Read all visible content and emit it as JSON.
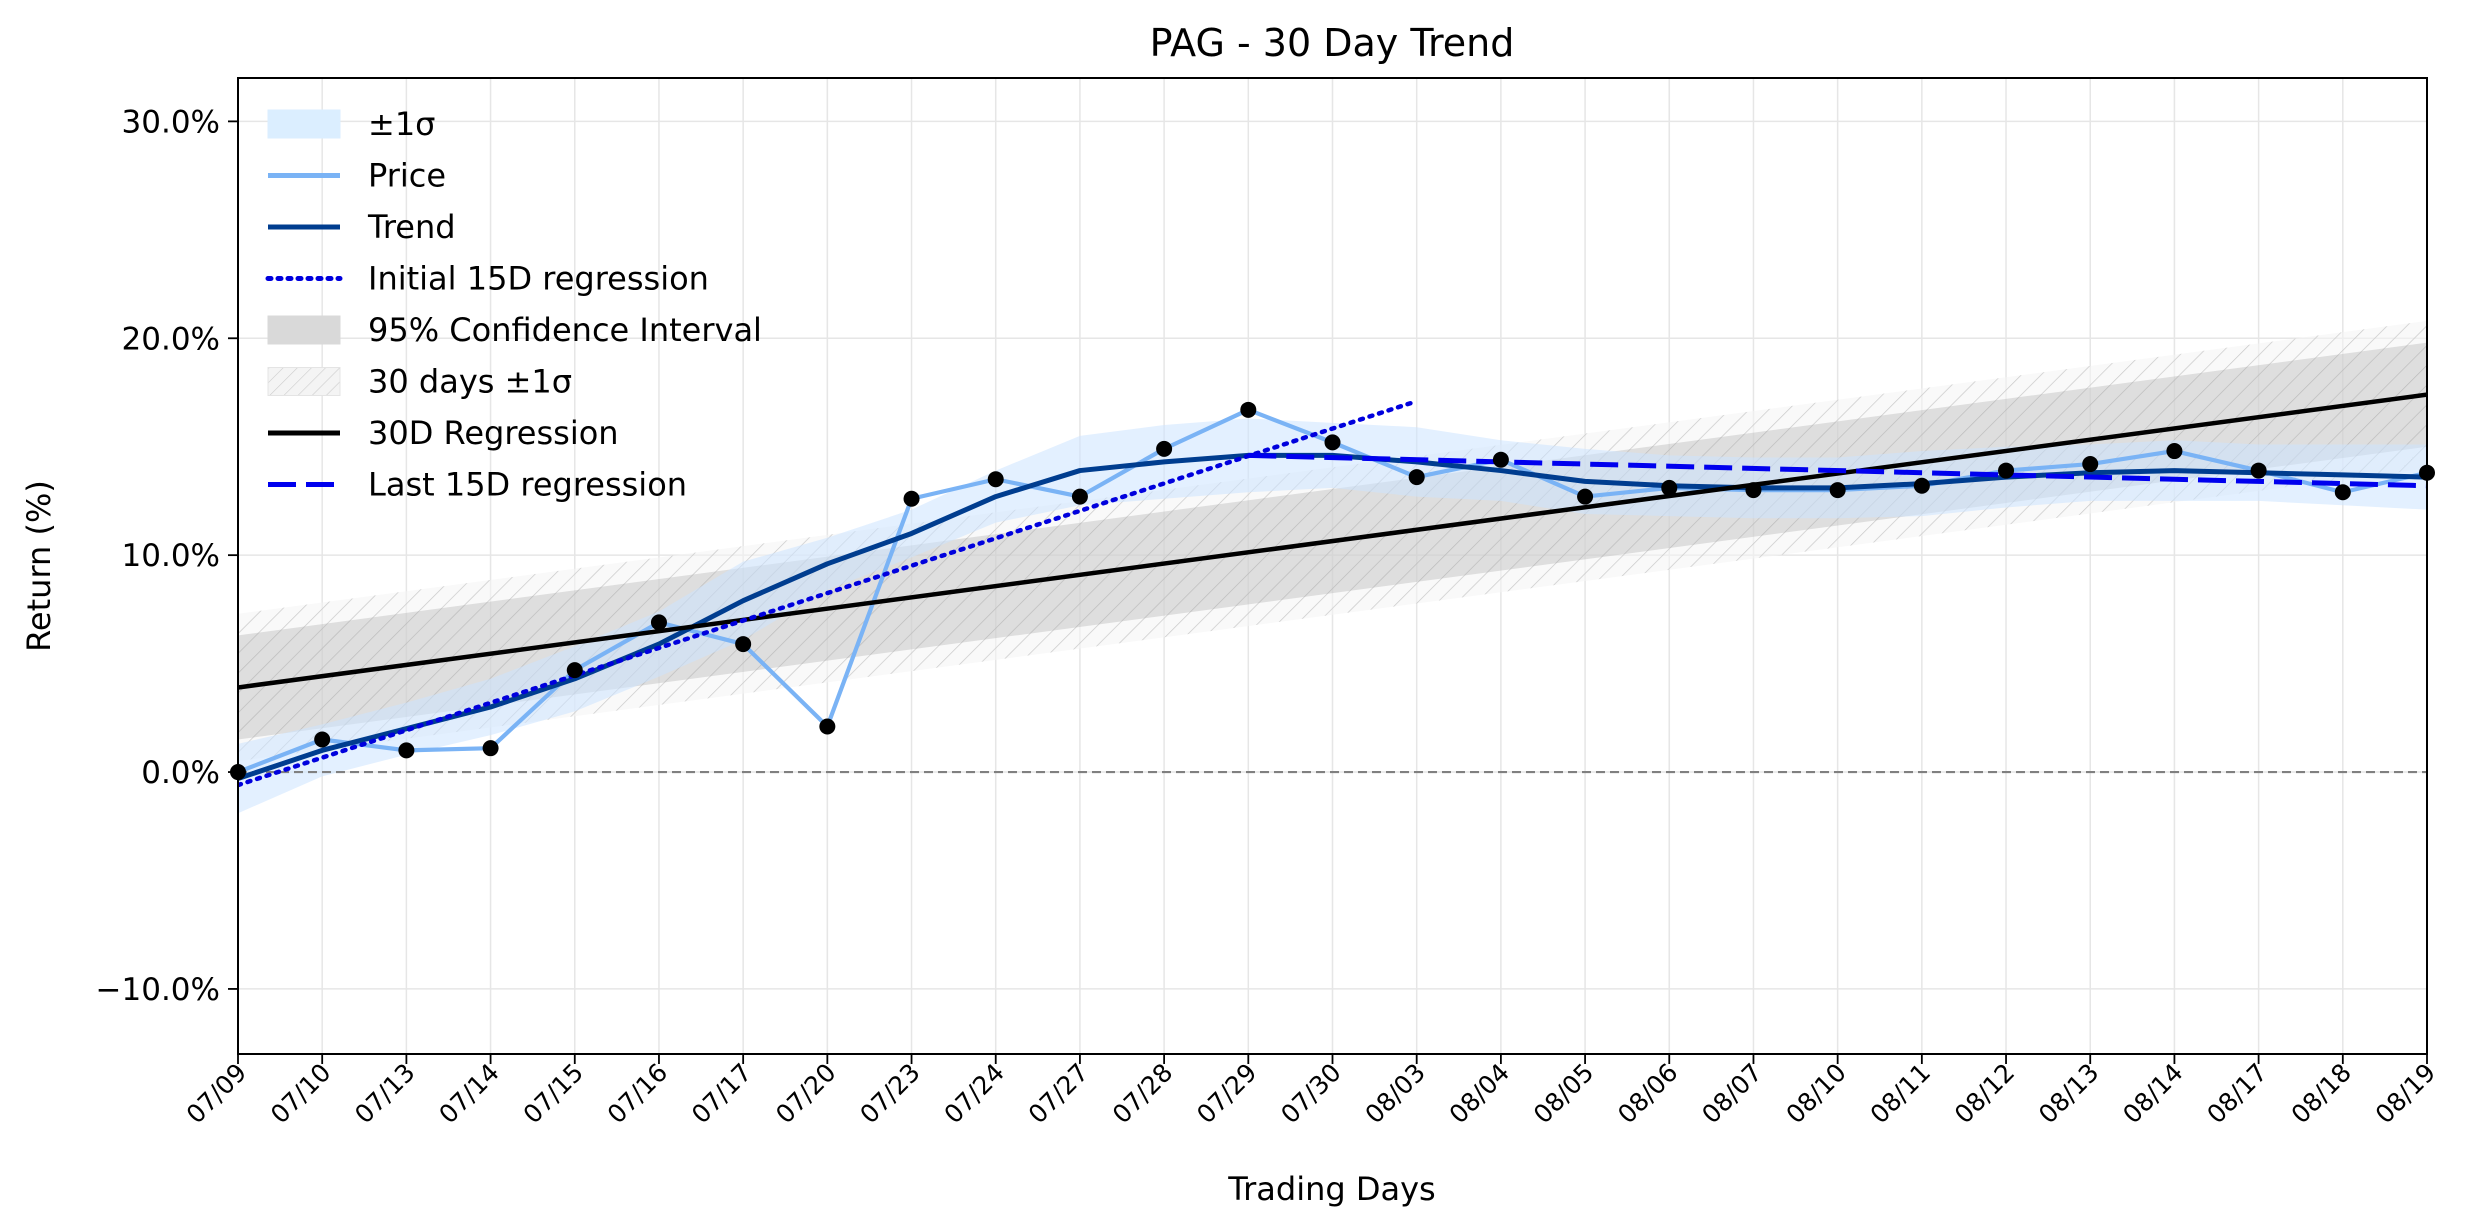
{
  "chart_data": {
    "type": "line",
    "title": "PAG - 30 Day Trend",
    "xlabel": "Trading Days",
    "ylabel": "Return (%)",
    "categories": [
      "07/09",
      "07/10",
      "07/13",
      "07/14",
      "07/15",
      "07/16",
      "07/17",
      "07/20",
      "07/23",
      "07/24",
      "07/27",
      "07/28",
      "07/29",
      "07/30",
      "08/03",
      "08/04",
      "08/05",
      "08/06",
      "08/07",
      "08/10",
      "08/11",
      "08/12",
      "08/13",
      "08/14",
      "08/17",
      "08/18",
      "08/19"
    ],
    "ylim": [
      -13.0,
      32.0
    ],
    "yticks": [
      -10,
      0,
      10,
      20,
      30
    ],
    "ytick_labels": [
      "−10.0%",
      "0.0%",
      "10.0%",
      "20.0%",
      "30.0%"
    ],
    "zero_line": true,
    "grid": true,
    "legend_position": "top-left",
    "legend": [
      {
        "label": "±1σ",
        "kind": "band",
        "color": "#dbeeff"
      },
      {
        "label": "Price",
        "kind": "line",
        "color": "#7ab3f5"
      },
      {
        "label": "Trend",
        "kind": "line",
        "color": "#003d8f"
      },
      {
        "label": "Initial 15D regression",
        "kind": "dotted",
        "color": "#0000dd"
      },
      {
        "label": "95% Confidence Interval",
        "kind": "band",
        "color": "#d9d9d9"
      },
      {
        "label": "30 days ±1σ",
        "kind": "hatch",
        "color": "#eeeeee"
      },
      {
        "label": "30D Regression",
        "kind": "line",
        "color": "#000000"
      },
      {
        "label": "Last 15D regression",
        "kind": "dashed",
        "color": "#0000ee"
      }
    ],
    "series": [
      {
        "name": "Price",
        "color": "#7ab3f5",
        "values": [
          0.0,
          1.5,
          1.0,
          1.1,
          4.7,
          6.9,
          5.9,
          2.1,
          12.6,
          13.5,
          12.7,
          14.9,
          16.7,
          15.2,
          13.6,
          14.4,
          12.7,
          13.1,
          13.0,
          13.0,
          13.2,
          13.9,
          14.2,
          14.8,
          13.9,
          12.9,
          13.8
        ]
      },
      {
        "name": "Trend",
        "color": "#003d8f",
        "values": [
          -0.3,
          1.0,
          2.0,
          3.0,
          4.3,
          5.9,
          7.9,
          9.6,
          11.0,
          12.7,
          13.9,
          14.3,
          14.6,
          14.6,
          14.3,
          13.9,
          13.4,
          13.2,
          13.1,
          13.1,
          13.3,
          13.6,
          13.8,
          13.9,
          13.8,
          13.7,
          13.6
        ]
      },
      {
        "name": "Initial 15D regression",
        "color": "#0000dd",
        "x_range": [
          0,
          14
        ],
        "y_range": [
          -0.6,
          17.1
        ]
      },
      {
        "name": "30D Regression",
        "color": "#000000",
        "x_range": [
          0,
          26
        ],
        "y_range": [
          3.9,
          17.4
        ]
      },
      {
        "name": "Last 15D regression",
        "color": "#0000ee",
        "x_range": [
          12,
          26
        ],
        "y_range": [
          14.6,
          13.2
        ]
      }
    ],
    "bands": [
      {
        "name": "±1σ",
        "around": "Trend",
        "half_width": [
          1.6,
          1.2,
          1.2,
          1.3,
          1.5,
          1.5,
          1.8,
          1.2,
          1.1,
          1.2,
          1.6,
          1.7,
          1.7,
          1.5,
          1.6,
          1.4,
          1.5,
          1.4,
          1.4,
          1.4,
          1.5,
          1.4,
          1.3,
          1.4,
          1.3,
          1.4,
          1.5
        ]
      },
      {
        "name": "95% Confidence Interval",
        "around": "30D Regression",
        "half_width": 2.4
      },
      {
        "name": "30 days ±1σ",
        "around": "30D Regression",
        "half_width": 3.4
      }
    ]
  }
}
